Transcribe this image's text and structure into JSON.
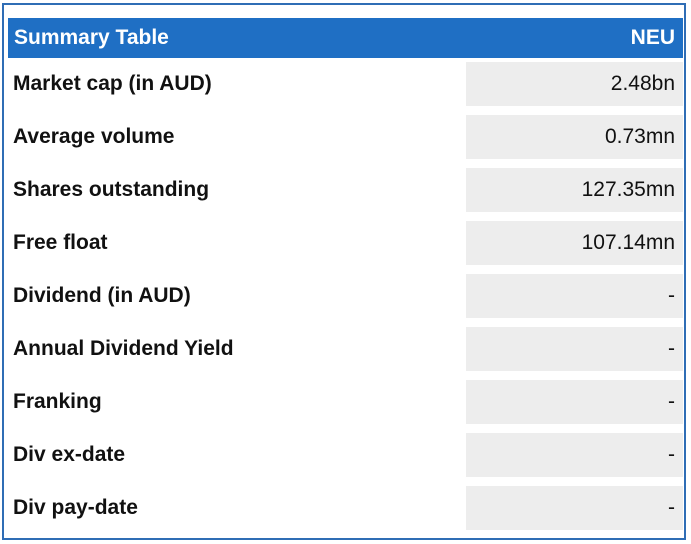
{
  "table": {
    "title": "Summary Table",
    "ticker": "NEU",
    "rows": [
      {
        "label": "Market cap (in AUD)",
        "value": "2.48bn"
      },
      {
        "label": "Average volume",
        "value": "0.73mn"
      },
      {
        "label": "Shares outstanding",
        "value": "127.35mn"
      },
      {
        "label": "Free float",
        "value": "107.14mn"
      },
      {
        "label": "Dividend (in AUD)",
        "value": "-"
      },
      {
        "label": "Annual Dividend Yield",
        "value": "-"
      },
      {
        "label": "Franking",
        "value": "-"
      },
      {
        "label": "Div ex-date",
        "value": "-"
      },
      {
        "label": "Div pay-date",
        "value": "-"
      }
    ]
  },
  "colors": {
    "header_bg": "#1f6fc4",
    "border": "#2f6db5",
    "value_cell_bg": "#ededed"
  }
}
